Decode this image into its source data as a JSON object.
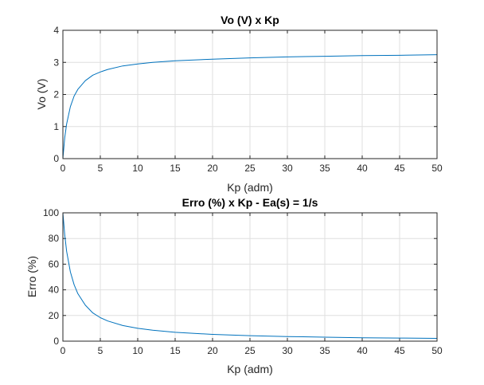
{
  "chart_data": [
    {
      "type": "line",
      "title": "Vo (V) x Kp",
      "xlabel": "Kp (adm)",
      "ylabel": "Vo (V)",
      "xlim": [
        0,
        50
      ],
      "ylim": [
        0,
        4
      ],
      "x_ticks": [
        "0",
        "5",
        "10",
        "15",
        "20",
        "25",
        "30",
        "35",
        "40",
        "45",
        "50"
      ],
      "y_ticks": [
        "0",
        "1",
        "2",
        "3",
        "4"
      ],
      "grid": true,
      "colors": {
        "line": "#0072bd",
        "grid": "#dfdfdf",
        "axis": "#262626"
      },
      "series": [
        {
          "x": [
            0,
            0.25,
            0.5,
            1,
            1.5,
            2,
            3,
            4,
            5,
            6,
            8,
            10,
            12,
            15,
            20,
            25,
            30,
            35,
            40,
            45,
            50
          ],
          "y": [
            0,
            0.65,
            1.08,
            1.62,
            1.95,
            2.16,
            2.43,
            2.6,
            2.7,
            2.78,
            2.89,
            2.95,
            3.0,
            3.05,
            3.1,
            3.14,
            3.17,
            3.19,
            3.21,
            3.22,
            3.24
          ]
        }
      ]
    },
    {
      "type": "line",
      "title": "Erro (%) x Kp - Ea(s) = 1/s",
      "xlabel": "Kp (adm)",
      "ylabel": "Erro (%)",
      "xlim": [
        0,
        50
      ],
      "ylim": [
        0,
        100
      ],
      "x_ticks": [
        "0",
        "5",
        "10",
        "15",
        "20",
        "25",
        "30",
        "35",
        "40",
        "45",
        "50"
      ],
      "y_ticks": [
        "0",
        "20",
        "40",
        "60",
        "80",
        "100"
      ],
      "grid": true,
      "colors": {
        "line": "#0072bd",
        "grid": "#dfdfdf",
        "axis": "#262626"
      },
      "series": [
        {
          "x": [
            0,
            0.25,
            0.5,
            1,
            1.5,
            2,
            3,
            4,
            5,
            6,
            8,
            10,
            12,
            15,
            20,
            25,
            30,
            35,
            40,
            45,
            50
          ],
          "y": [
            100,
            83,
            70,
            54,
            44,
            37,
            28,
            22,
            18.3,
            15.7,
            12.2,
            10,
            8.5,
            6.9,
            5.3,
            4.3,
            3.6,
            3.1,
            2.7,
            2.4,
            2.2
          ]
        }
      ]
    }
  ]
}
